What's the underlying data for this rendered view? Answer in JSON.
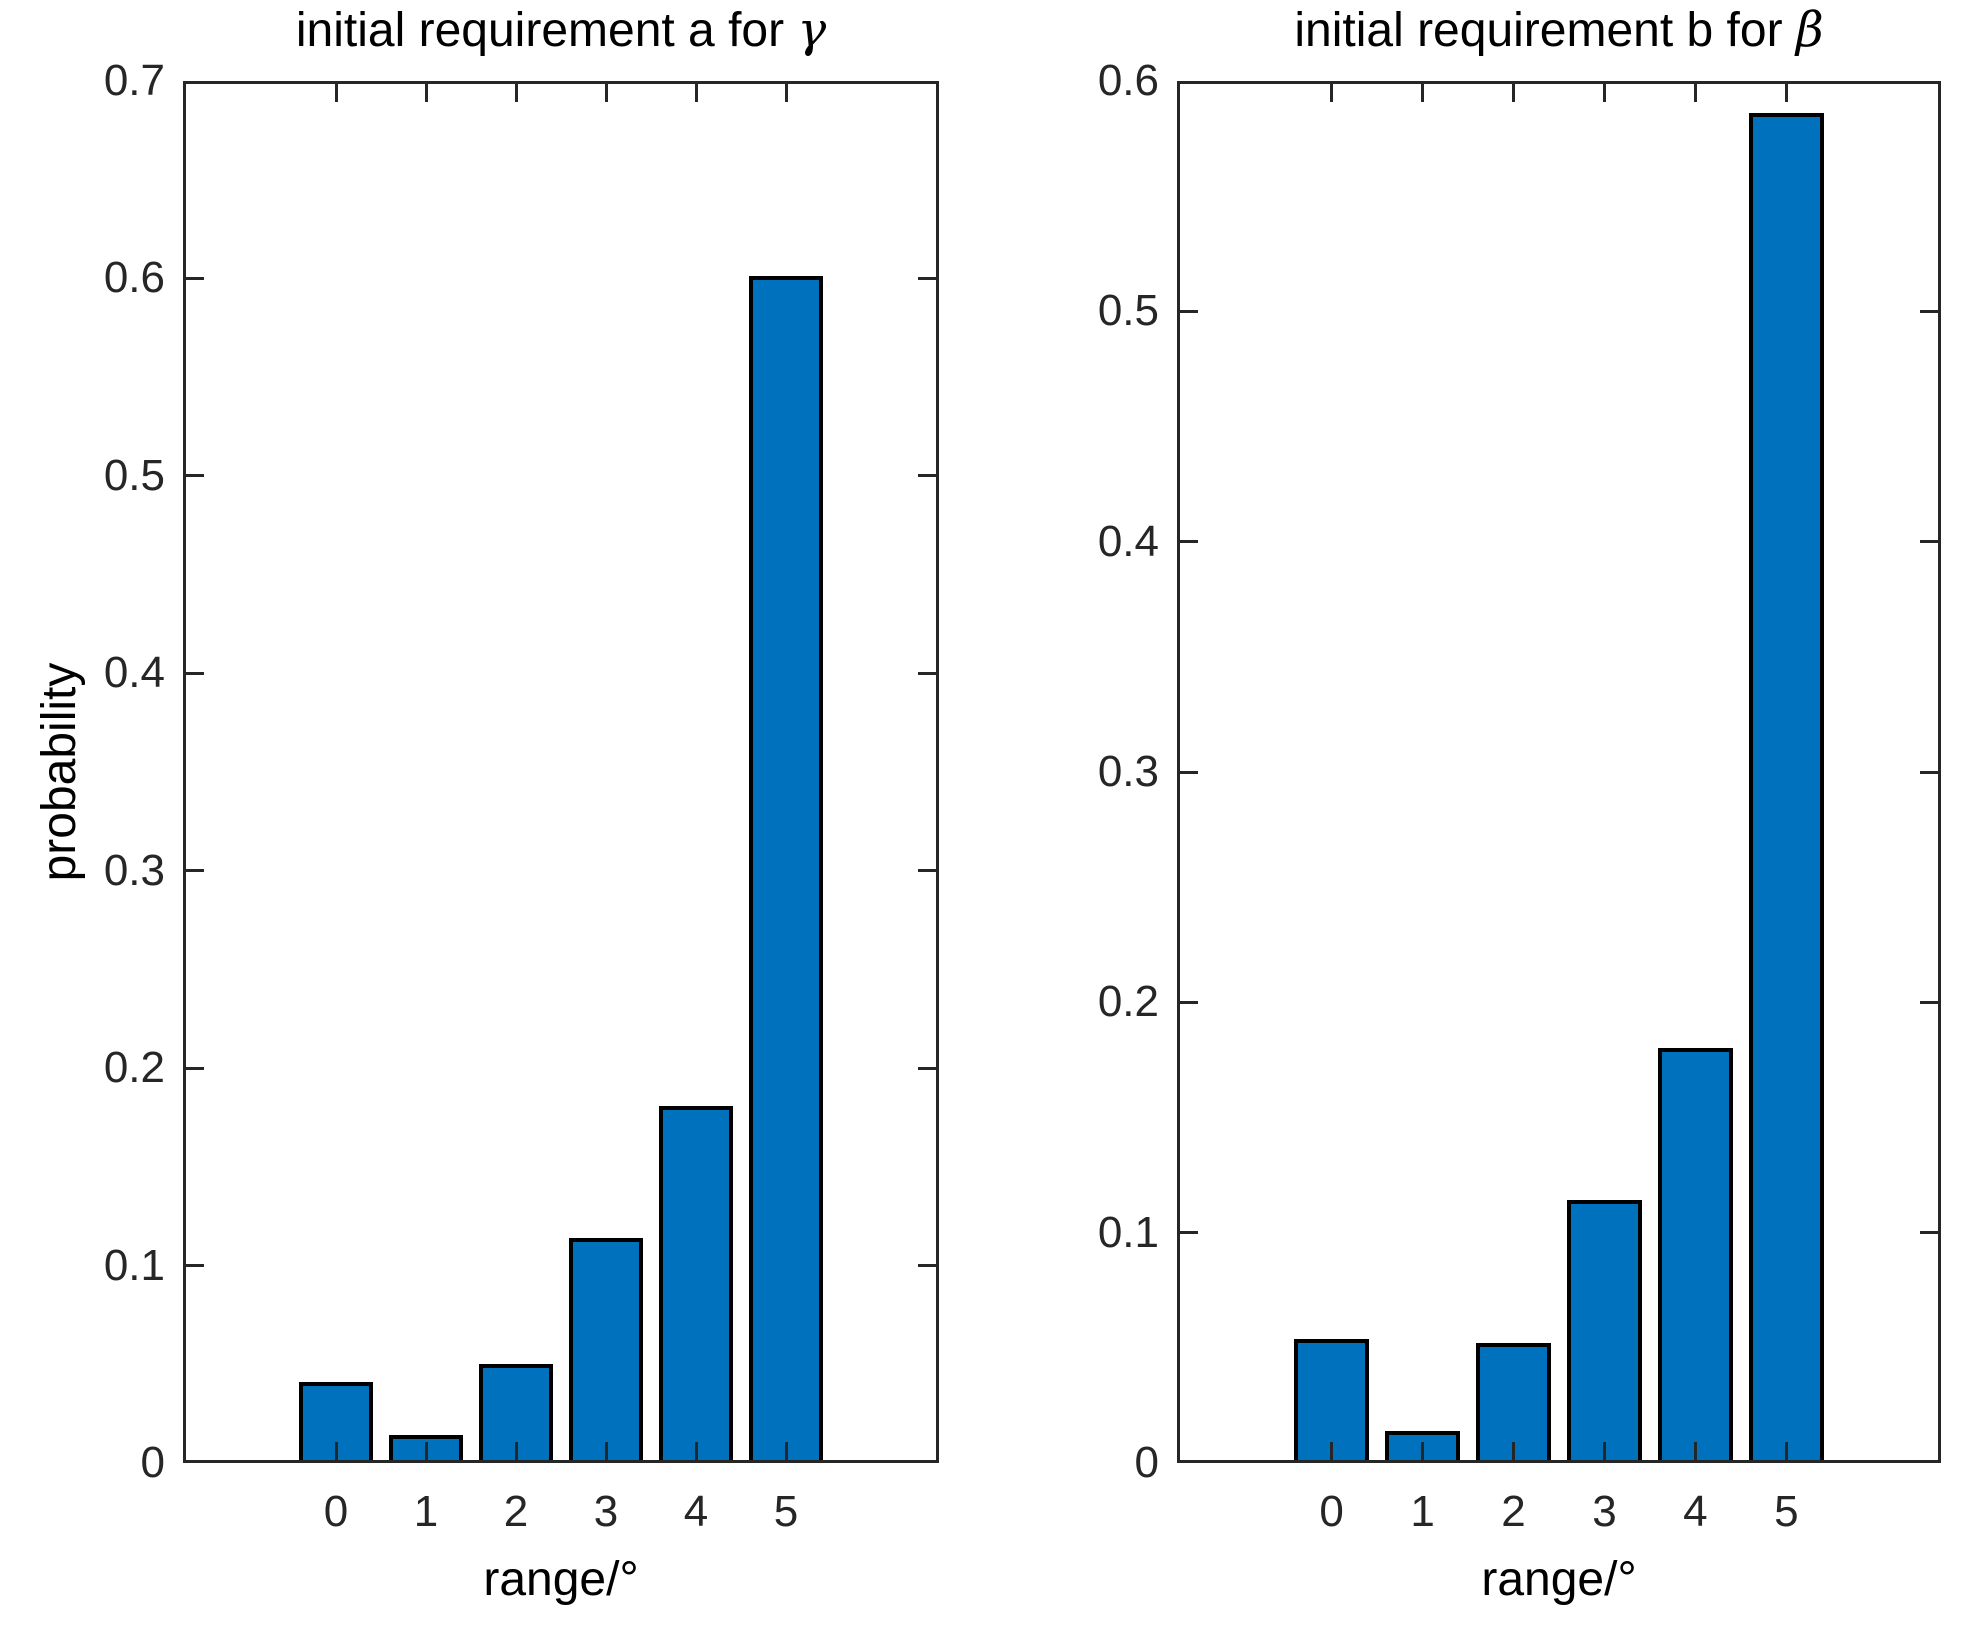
{
  "figure": {
    "background": "#ffffff",
    "bar_fill_color": "#0072BD",
    "bar_edge_color": "#000000",
    "axis_color": "#262626",
    "text_color": "#000000"
  },
  "chart_data": [
    {
      "type": "bar",
      "title": "initial requirement a for γ",
      "title_prefix": "initial requirement a for ",
      "title_symbol": "γ",
      "xlabel": "range/°",
      "ylabel": "probability",
      "categories": [
        "0",
        "1",
        "2",
        "3",
        "4",
        "5"
      ],
      "values": [
        0.041,
        0.014,
        0.05,
        0.114,
        0.181,
        0.601
      ],
      "ylim": [
        0,
        0.7
      ],
      "ytick_labels": [
        "0",
        "0.1",
        "0.2",
        "0.3",
        "0.4",
        "0.5",
        "0.6",
        "0.7"
      ],
      "grid": false,
      "legend": null
    },
    {
      "type": "bar",
      "title": "initial requirement b for β",
      "title_prefix": "initial requirement b for ",
      "title_symbol": "β",
      "xlabel": "range/°",
      "ylabel": "",
      "categories": [
        "0",
        "1",
        "2",
        "3",
        "4",
        "5"
      ],
      "values": [
        0.054,
        0.014,
        0.052,
        0.114,
        0.18,
        0.586
      ],
      "ylim": [
        0,
        0.6
      ],
      "ytick_labels": [
        "0",
        "0.1",
        "0.2",
        "0.3",
        "0.4",
        "0.5",
        "0.6"
      ],
      "grid": false,
      "legend": null
    }
  ]
}
